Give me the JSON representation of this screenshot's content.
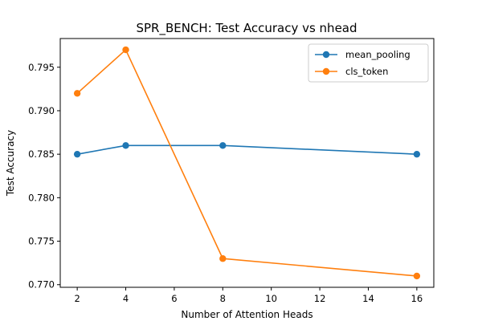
{
  "chart_data": {
    "type": "line",
    "title": "SPR_BENCH: Test Accuracy vs nhead",
    "xlabel": "Number of Attention Heads",
    "ylabel": "Test Accuracy",
    "xlim": [
      1.3,
      16.7
    ],
    "ylim": [
      0.7697,
      0.7983
    ],
    "xticks": [
      2,
      4,
      6,
      8,
      10,
      12,
      14,
      16
    ],
    "yticks": [
      0.77,
      0.775,
      0.78,
      0.785,
      0.79,
      0.795
    ],
    "xtick_labels": [
      "2",
      "4",
      "6",
      "8",
      "10",
      "12",
      "14",
      "16"
    ],
    "ytick_labels": [
      "0.770",
      "0.775",
      "0.780",
      "0.785",
      "0.790",
      "0.795"
    ],
    "grid": false,
    "legend_position": "top-right",
    "series": [
      {
        "name": "mean_pooling",
        "color": "#1f77b4",
        "x": [
          2,
          4,
          8,
          16
        ],
        "y": [
          0.785,
          0.786,
          0.786,
          0.785
        ]
      },
      {
        "name": "cls_token",
        "color": "#ff7f0e",
        "x": [
          2,
          4,
          8,
          16
        ],
        "y": [
          0.792,
          0.797,
          0.773,
          0.771
        ]
      }
    ]
  }
}
